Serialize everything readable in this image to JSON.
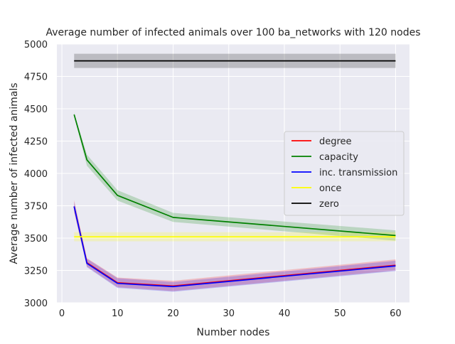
{
  "chart_data": {
    "type": "line",
    "title": "Average number of infected animals over 100 ba_networks with 120 nodes",
    "xlabel": "Number nodes",
    "ylabel": "Average number of infected animals",
    "xlim": [
      -0.9,
      62.5
    ],
    "ylim": [
      3000,
      5000
    ],
    "xticks": [
      0,
      10,
      20,
      30,
      40,
      50,
      60
    ],
    "yticks": [
      3000,
      3250,
      3500,
      3750,
      4000,
      4250,
      4500,
      4750,
      5000
    ],
    "grid": true,
    "background": "#eaeaf2",
    "legend_position": "center-right",
    "series": [
      {
        "name": "degree",
        "color": "#ff0000",
        "x": [
          2.2,
          4.5,
          10,
          20,
          60
        ],
        "y": [
          3745,
          3310,
          3155,
          3130,
          3290
        ],
        "lower": [
          3700,
          3280,
          3120,
          3090,
          3250
        ],
        "upper": [
          3795,
          3345,
          3195,
          3170,
          3335
        ]
      },
      {
        "name": "capacity",
        "color": "#008000",
        "x": [
          2.2,
          4.5,
          10,
          20,
          60
        ],
        "y": [
          4455,
          4105,
          3830,
          3660,
          3520
        ],
        "lower": [
          4440,
          4060,
          3790,
          3625,
          3480
        ],
        "upper": [
          4470,
          4145,
          3870,
          3695,
          3560
        ]
      },
      {
        "name": "inc. transmission",
        "color": "#0000ff",
        "x": [
          2.2,
          4.5,
          10,
          20,
          60
        ],
        "y": [
          3745,
          3305,
          3150,
          3125,
          3285
        ],
        "lower": [
          3710,
          3275,
          3115,
          3085,
          3245
        ],
        "upper": [
          3780,
          3340,
          3190,
          3160,
          3325
        ]
      },
      {
        "name": "once",
        "color": "#ffff00",
        "x": [
          2.2,
          60
        ],
        "y": [
          3510,
          3510
        ],
        "lower": [
          3475,
          3475
        ],
        "upper": [
          3545,
          3545
        ]
      },
      {
        "name": "zero",
        "color": "#000000",
        "x": [
          2.2,
          60
        ],
        "y": [
          4870,
          4870
        ],
        "lower": [
          4815,
          4815
        ],
        "upper": [
          4925,
          4925
        ]
      }
    ]
  }
}
